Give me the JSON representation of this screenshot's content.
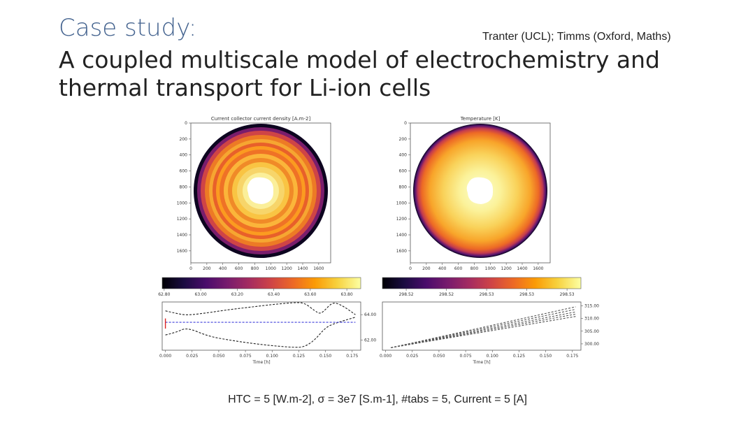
{
  "slide": {
    "title_line1": "Case study:",
    "title_line2": "A coupled multiscale model of electrochemistry and",
    "title_line3": "thermal transport for Li-ion cells",
    "credit": "Tranter (UCL); Timms (Oxford, Maths)",
    "footer": "HTC = 5 [W.m-2], σ = 3e7 [S.m-1], #tabs = 5, Current = 5 [A]"
  },
  "colors": {
    "title_blue": "#44638f",
    "inferno": [
      "#000004",
      "#1b0c41",
      "#4a0c6b",
      "#781c6d",
      "#a52c60",
      "#cf4446",
      "#ed6925",
      "#fb9b06",
      "#f7d13d",
      "#fcffa4"
    ]
  },
  "chart_data": [
    {
      "type": "heatmap",
      "title": "Current collector current density [A.m-2]",
      "shape": "disk",
      "x_ticks": [
        0,
        200,
        400,
        600,
        800,
        1000,
        1200,
        1400,
        1600
      ],
      "y_ticks": [
        0,
        200,
        400,
        600,
        800,
        1000,
        1200,
        1400,
        1600
      ],
      "colorbar_ticks": [
        "62.80",
        "63.00",
        "63.20",
        "63.40",
        "63.60",
        "63.80"
      ],
      "colorbar_range": [
        62.8,
        63.9
      ]
    },
    {
      "type": "heatmap",
      "title": "Temperature [K]",
      "shape": "disk",
      "x_ticks": [
        0,
        200,
        400,
        600,
        800,
        1000,
        1200,
        1400,
        1600
      ],
      "y_ticks": [
        0,
        200,
        400,
        600,
        800,
        1000,
        1200,
        1400,
        1600
      ],
      "colorbar_ticks": [
        "298.52",
        "298.52",
        "298.53",
        "298.53",
        "298.53"
      ]
    },
    {
      "type": "line",
      "xlabel": "Time [h]",
      "x_ticks": [
        "0.000",
        "0.025",
        "0.050",
        "0.075",
        "0.100",
        "0.125",
        "0.150",
        "0.175"
      ],
      "xlim": [
        -0.003,
        0.183
      ],
      "y_ticks": [
        "62.00",
        "64.00"
      ],
      "ylim": [
        61.2,
        65.0
      ],
      "series": [
        {
          "name": "upper envelope",
          "style": "dashed",
          "color": "#222222",
          "x": [
            0.0,
            0.01,
            0.02,
            0.04,
            0.06,
            0.08,
            0.1,
            0.12,
            0.13,
            0.14,
            0.145,
            0.15,
            0.155,
            0.16,
            0.17,
            0.178
          ],
          "y": [
            64.3,
            64.1,
            63.95,
            64.15,
            64.4,
            64.6,
            64.8,
            64.95,
            64.95,
            64.3,
            64.05,
            64.4,
            64.85,
            64.95,
            64.5,
            64.0
          ]
        },
        {
          "name": "lower envelope",
          "style": "dashed",
          "color": "#222222",
          "x": [
            0.0,
            0.01,
            0.02,
            0.04,
            0.06,
            0.08,
            0.1,
            0.12,
            0.13,
            0.14,
            0.15,
            0.16,
            0.17,
            0.178
          ],
          "y": [
            62.4,
            62.6,
            63.0,
            62.3,
            62.0,
            61.75,
            61.55,
            61.42,
            61.45,
            62.0,
            63.0,
            63.35,
            63.6,
            63.8
          ]
        },
        {
          "name": "mean",
          "style": "dashed",
          "color": "#3b3bd9",
          "x": [
            0.0,
            0.178
          ],
          "y": [
            63.4,
            63.4
          ]
        },
        {
          "name": "start",
          "style": "solid",
          "color": "#dd2222",
          "x": [
            0.0,
            0.0
          ],
          "y": [
            62.9,
            63.7
          ]
        }
      ]
    },
    {
      "type": "line",
      "xlabel": "Time [h]",
      "x_ticks": [
        "0.000",
        "0.025",
        "0.050",
        "0.075",
        "0.100",
        "0.125",
        "0.150",
        "0.175"
      ],
      "xlim": [
        -0.003,
        0.183
      ],
      "y_ticks": [
        "300.00",
        "305.00",
        "310.00",
        "315.00"
      ],
      "ylim": [
        297.5,
        316.5
      ],
      "series": [
        {
          "name": "T1",
          "style": "dashed",
          "color": "#555555",
          "x": [
            0.005,
            0.178
          ],
          "y": [
            298.5,
            314.6
          ]
        },
        {
          "name": "T2",
          "style": "dashed",
          "color": "#555555",
          "x": [
            0.005,
            0.178
          ],
          "y": [
            298.5,
            313.6
          ]
        },
        {
          "name": "T3",
          "style": "dashed",
          "color": "#555555",
          "x": [
            0.005,
            0.178
          ],
          "y": [
            298.5,
            312.6
          ]
        },
        {
          "name": "T4",
          "style": "dashed",
          "color": "#555555",
          "x": [
            0.005,
            0.178
          ],
          "y": [
            298.5,
            311.7
          ]
        },
        {
          "name": "T5",
          "style": "dashed",
          "color": "#555555",
          "x": [
            0.005,
            0.178
          ],
          "y": [
            298.5,
            310.8
          ]
        }
      ]
    }
  ]
}
